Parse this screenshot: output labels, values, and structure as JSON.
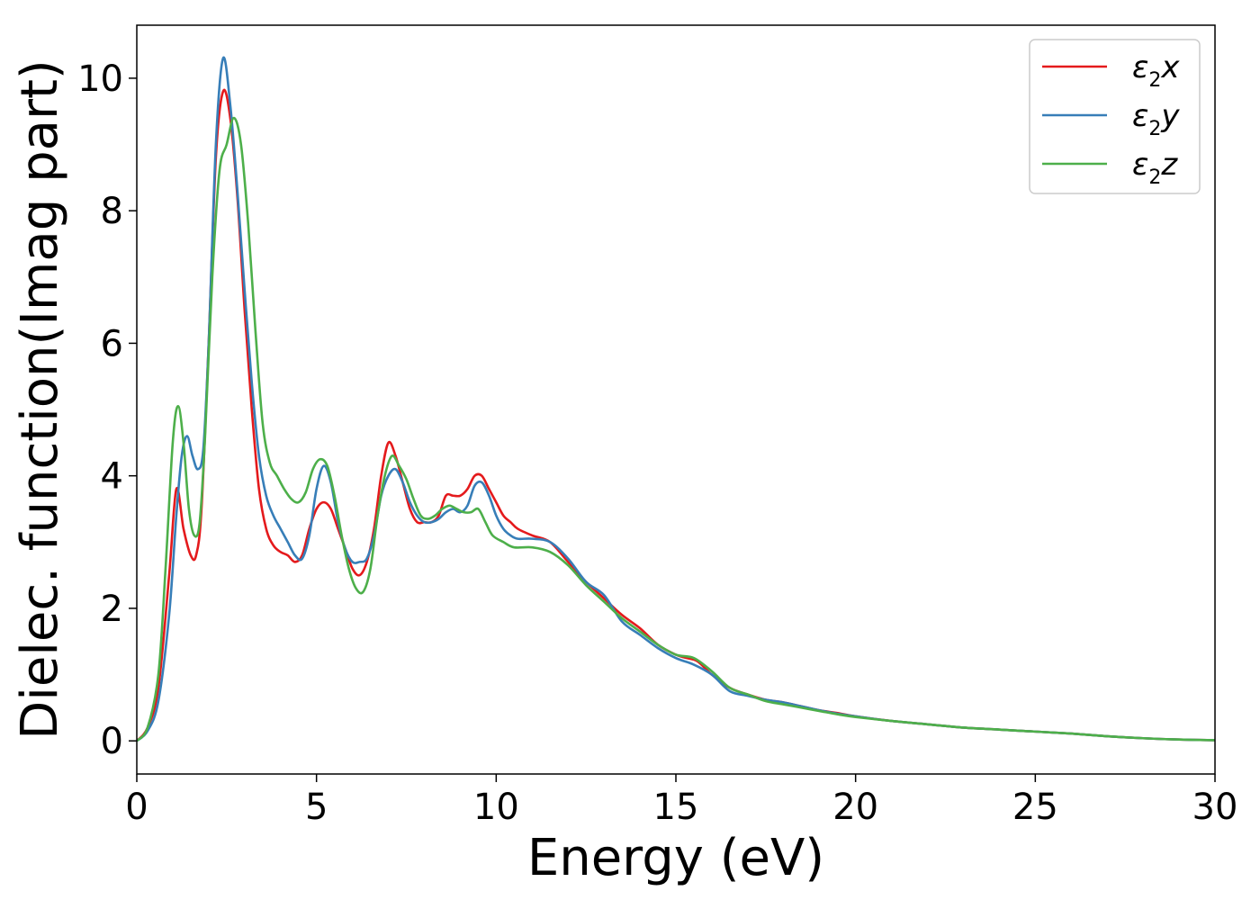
{
  "chart_data": {
    "type": "line",
    "title": "",
    "xlabel": "Energy (eV)",
    "ylabel": "Dielec. function(Imag part)",
    "xlim": [
      0,
      30
    ],
    "ylim": [
      -0.5,
      10.8
    ],
    "xticks": [
      0,
      5,
      10,
      15,
      20,
      25,
      30
    ],
    "xtick_labels": [
      "0",
      "5",
      "10",
      "15",
      "20",
      "25",
      "30"
    ],
    "yticks": [
      0,
      2,
      4,
      6,
      8,
      10
    ],
    "ytick_labels": [
      "0",
      "2",
      "4",
      "6",
      "8",
      "10"
    ],
    "grid": false,
    "legend_position": "top-right",
    "series": [
      {
        "name": "ε₂x",
        "legend": {
          "symbol": "ε",
          "sub": "2",
          "axis": "x"
        },
        "color": "#e41a1c",
        "points": [
          [
            0,
            0
          ],
          [
            0.3,
            0.2
          ],
          [
            0.6,
            0.8
          ],
          [
            0.9,
            2.5
          ],
          [
            1.1,
            3.8
          ],
          [
            1.3,
            3.2
          ],
          [
            1.5,
            2.8
          ],
          [
            1.65,
            2.8
          ],
          [
            1.8,
            3.5
          ],
          [
            2.0,
            6.0
          ],
          [
            2.2,
            8.8
          ],
          [
            2.4,
            9.8
          ],
          [
            2.6,
            9.4
          ],
          [
            2.8,
            8.2
          ],
          [
            3.0,
            6.5
          ],
          [
            3.2,
            5.0
          ],
          [
            3.4,
            3.8
          ],
          [
            3.6,
            3.2
          ],
          [
            3.8,
            2.95
          ],
          [
            4.0,
            2.85
          ],
          [
            4.2,
            2.8
          ],
          [
            4.4,
            2.7
          ],
          [
            4.6,
            2.8
          ],
          [
            4.8,
            3.2
          ],
          [
            5.0,
            3.5
          ],
          [
            5.2,
            3.6
          ],
          [
            5.4,
            3.5
          ],
          [
            5.6,
            3.2
          ],
          [
            5.8,
            2.9
          ],
          [
            6.0,
            2.6
          ],
          [
            6.2,
            2.5
          ],
          [
            6.4,
            2.7
          ],
          [
            6.6,
            3.2
          ],
          [
            6.8,
            4.0
          ],
          [
            7.0,
            4.5
          ],
          [
            7.2,
            4.3
          ],
          [
            7.4,
            3.9
          ],
          [
            7.6,
            3.5
          ],
          [
            7.8,
            3.3
          ],
          [
            8.0,
            3.3
          ],
          [
            8.2,
            3.3
          ],
          [
            8.4,
            3.4
          ],
          [
            8.6,
            3.7
          ],
          [
            8.8,
            3.7
          ],
          [
            9.0,
            3.7
          ],
          [
            9.2,
            3.8
          ],
          [
            9.4,
            4.0
          ],
          [
            9.6,
            4.0
          ],
          [
            9.8,
            3.8
          ],
          [
            10.0,
            3.6
          ],
          [
            10.2,
            3.4
          ],
          [
            10.4,
            3.3
          ],
          [
            10.6,
            3.2
          ],
          [
            11.0,
            3.1
          ],
          [
            11.5,
            3.0
          ],
          [
            12.0,
            2.7
          ],
          [
            12.5,
            2.4
          ],
          [
            13.0,
            2.15
          ],
          [
            13.5,
            1.9
          ],
          [
            14.0,
            1.7
          ],
          [
            14.5,
            1.45
          ],
          [
            15.0,
            1.3
          ],
          [
            15.3,
            1.25
          ],
          [
            15.6,
            1.2
          ],
          [
            16.0,
            1.0
          ],
          [
            16.5,
            0.8
          ],
          [
            17.0,
            0.7
          ],
          [
            17.5,
            0.62
          ],
          [
            18.0,
            0.58
          ],
          [
            18.5,
            0.52
          ],
          [
            19.0,
            0.46
          ],
          [
            19.5,
            0.42
          ],
          [
            20.0,
            0.37
          ],
          [
            21.0,
            0.3
          ],
          [
            22.0,
            0.25
          ],
          [
            23.0,
            0.2
          ],
          [
            24.0,
            0.17
          ],
          [
            25.0,
            0.14
          ],
          [
            26.0,
            0.11
          ],
          [
            27.0,
            0.07
          ],
          [
            28.0,
            0.04
          ],
          [
            29.0,
            0.02
          ],
          [
            30.0,
            0.01
          ]
        ]
      },
      {
        "name": "ε₂y",
        "legend": {
          "symbol": "ε",
          "sub": "2",
          "axis": "y"
        },
        "color": "#377eb8",
        "points": [
          [
            0,
            0
          ],
          [
            0.3,
            0.15
          ],
          [
            0.6,
            0.6
          ],
          [
            0.9,
            1.9
          ],
          [
            1.1,
            3.4
          ],
          [
            1.25,
            4.3
          ],
          [
            1.4,
            4.6
          ],
          [
            1.55,
            4.3
          ],
          [
            1.7,
            4.1
          ],
          [
            1.85,
            4.4
          ],
          [
            2.0,
            6.0
          ],
          [
            2.2,
            9.0
          ],
          [
            2.4,
            10.3
          ],
          [
            2.6,
            9.6
          ],
          [
            2.8,
            8.3
          ],
          [
            3.0,
            6.8
          ],
          [
            3.2,
            5.4
          ],
          [
            3.4,
            4.3
          ],
          [
            3.6,
            3.7
          ],
          [
            3.8,
            3.4
          ],
          [
            4.0,
            3.2
          ],
          [
            4.2,
            3.0
          ],
          [
            4.4,
            2.8
          ],
          [
            4.6,
            2.75
          ],
          [
            4.8,
            3.1
          ],
          [
            5.0,
            3.8
          ],
          [
            5.2,
            4.15
          ],
          [
            5.4,
            3.9
          ],
          [
            5.6,
            3.3
          ],
          [
            5.8,
            2.9
          ],
          [
            6.0,
            2.7
          ],
          [
            6.2,
            2.7
          ],
          [
            6.4,
            2.75
          ],
          [
            6.6,
            3.1
          ],
          [
            6.8,
            3.7
          ],
          [
            7.0,
            4.0
          ],
          [
            7.2,
            4.1
          ],
          [
            7.4,
            3.9
          ],
          [
            7.6,
            3.6
          ],
          [
            7.8,
            3.4
          ],
          [
            8.0,
            3.3
          ],
          [
            8.2,
            3.3
          ],
          [
            8.4,
            3.35
          ],
          [
            8.6,
            3.45
          ],
          [
            8.8,
            3.5
          ],
          [
            9.0,
            3.45
          ],
          [
            9.2,
            3.55
          ],
          [
            9.4,
            3.85
          ],
          [
            9.6,
            3.9
          ],
          [
            9.8,
            3.7
          ],
          [
            10.0,
            3.4
          ],
          [
            10.2,
            3.2
          ],
          [
            10.4,
            3.1
          ],
          [
            10.6,
            3.05
          ],
          [
            11.0,
            3.05
          ],
          [
            11.5,
            3.0
          ],
          [
            12.0,
            2.75
          ],
          [
            12.5,
            2.4
          ],
          [
            13.0,
            2.2
          ],
          [
            13.5,
            1.8
          ],
          [
            14.0,
            1.6
          ],
          [
            14.5,
            1.4
          ],
          [
            15.0,
            1.25
          ],
          [
            15.5,
            1.15
          ],
          [
            16.0,
            1.0
          ],
          [
            16.5,
            0.75
          ],
          [
            17.0,
            0.68
          ],
          [
            17.5,
            0.62
          ],
          [
            18.0,
            0.58
          ],
          [
            18.5,
            0.52
          ],
          [
            19.0,
            0.46
          ],
          [
            19.5,
            0.41
          ],
          [
            20.0,
            0.37
          ],
          [
            21.0,
            0.3
          ],
          [
            22.0,
            0.25
          ],
          [
            23.0,
            0.2
          ],
          [
            24.0,
            0.17
          ],
          [
            25.0,
            0.14
          ],
          [
            26.0,
            0.11
          ],
          [
            27.0,
            0.07
          ],
          [
            28.0,
            0.04
          ],
          [
            29.0,
            0.02
          ],
          [
            30.0,
            0.01
          ]
        ]
      },
      {
        "name": "ε₂z",
        "legend": {
          "symbol": "ε",
          "sub": "2",
          "axis": "z"
        },
        "color": "#4daf4a",
        "points": [
          [
            0,
            0
          ],
          [
            0.3,
            0.2
          ],
          [
            0.6,
            1.0
          ],
          [
            0.8,
            2.6
          ],
          [
            1.0,
            4.5
          ],
          [
            1.15,
            5.05
          ],
          [
            1.3,
            4.5
          ],
          [
            1.45,
            3.5
          ],
          [
            1.6,
            3.1
          ],
          [
            1.75,
            3.3
          ],
          [
            1.9,
            4.6
          ],
          [
            2.1,
            7.0
          ],
          [
            2.3,
            8.6
          ],
          [
            2.5,
            9.0
          ],
          [
            2.7,
            9.4
          ],
          [
            2.9,
            9.0
          ],
          [
            3.1,
            7.8
          ],
          [
            3.3,
            6.2
          ],
          [
            3.5,
            4.8
          ],
          [
            3.7,
            4.2
          ],
          [
            3.9,
            4.0
          ],
          [
            4.1,
            3.8
          ],
          [
            4.3,
            3.65
          ],
          [
            4.5,
            3.6
          ],
          [
            4.7,
            3.75
          ],
          [
            4.9,
            4.1
          ],
          [
            5.1,
            4.25
          ],
          [
            5.3,
            4.15
          ],
          [
            5.5,
            3.7
          ],
          [
            5.7,
            3.1
          ],
          [
            5.9,
            2.6
          ],
          [
            6.1,
            2.3
          ],
          [
            6.3,
            2.25
          ],
          [
            6.5,
            2.6
          ],
          [
            6.7,
            3.4
          ],
          [
            6.9,
            4.0
          ],
          [
            7.1,
            4.3
          ],
          [
            7.3,
            4.15
          ],
          [
            7.5,
            3.95
          ],
          [
            7.7,
            3.65
          ],
          [
            7.9,
            3.4
          ],
          [
            8.1,
            3.35
          ],
          [
            8.3,
            3.4
          ],
          [
            8.5,
            3.5
          ],
          [
            8.7,
            3.55
          ],
          [
            8.9,
            3.5
          ],
          [
            9.1,
            3.45
          ],
          [
            9.3,
            3.45
          ],
          [
            9.5,
            3.5
          ],
          [
            9.7,
            3.3
          ],
          [
            9.9,
            3.1
          ],
          [
            10.2,
            3.0
          ],
          [
            10.5,
            2.92
          ],
          [
            11.0,
            2.92
          ],
          [
            11.5,
            2.85
          ],
          [
            12.0,
            2.65
          ],
          [
            12.5,
            2.35
          ],
          [
            13.0,
            2.1
          ],
          [
            13.5,
            1.85
          ],
          [
            14.0,
            1.65
          ],
          [
            14.5,
            1.45
          ],
          [
            15.0,
            1.3
          ],
          [
            15.5,
            1.25
          ],
          [
            16.0,
            1.05
          ],
          [
            16.5,
            0.8
          ],
          [
            17.0,
            0.7
          ],
          [
            17.5,
            0.6
          ],
          [
            18.0,
            0.55
          ],
          [
            18.5,
            0.5
          ],
          [
            19.0,
            0.45
          ],
          [
            19.5,
            0.4
          ],
          [
            20.0,
            0.36
          ],
          [
            21.0,
            0.3
          ],
          [
            22.0,
            0.25
          ],
          [
            23.0,
            0.2
          ],
          [
            24.0,
            0.17
          ],
          [
            25.0,
            0.14
          ],
          [
            26.0,
            0.11
          ],
          [
            27.0,
            0.07
          ],
          [
            28.0,
            0.04
          ],
          [
            29.0,
            0.02
          ],
          [
            30.0,
            0.01
          ]
        ]
      }
    ]
  }
}
